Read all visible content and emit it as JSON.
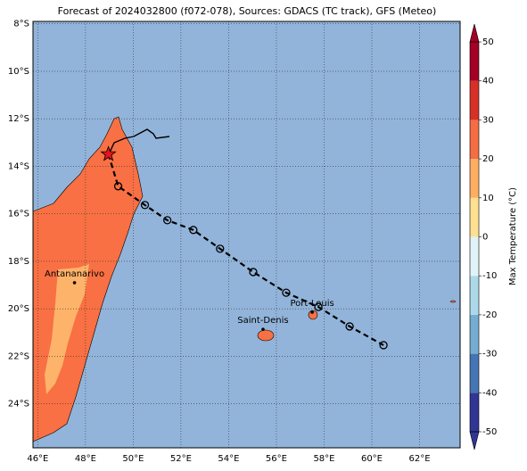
{
  "chart_data": {
    "type": "map",
    "title": "Forecast of 2024032800 (f072-078), Sources: GDACS (TC track), GFS (Meteo)",
    "xlim": [
      45.8,
      63.7
    ],
    "ylim": [
      -25.85,
      -7.9
    ],
    "xticks": [
      {
        "value": 46,
        "label": "46°E"
      },
      {
        "value": 48,
        "label": "48°E"
      },
      {
        "value": 50,
        "label": "50°E"
      },
      {
        "value": 52,
        "label": "52°E"
      },
      {
        "value": 54,
        "label": "54°E"
      },
      {
        "value": 56,
        "label": "56°E"
      },
      {
        "value": 58,
        "label": "58°E"
      },
      {
        "value": 60,
        "label": "60°E"
      },
      {
        "value": 62,
        "label": "62°E"
      }
    ],
    "yticks": [
      {
        "value": -8,
        "label": "8°S"
      },
      {
        "value": -10,
        "label": "10°S"
      },
      {
        "value": -12,
        "label": "12°S"
      },
      {
        "value": -14,
        "label": "14°S"
      },
      {
        "value": -16,
        "label": "16°S"
      },
      {
        "value": -18,
        "label": "18°S"
      },
      {
        "value": -20,
        "label": "20°S"
      },
      {
        "value": -22,
        "label": "22°S"
      },
      {
        "value": -24,
        "label": "24°S"
      }
    ],
    "grid": true,
    "ocean_color": "#92b4da",
    "track": {
      "color": "#000000",
      "lon": [
        48.96,
        49.37,
        50.49,
        51.43,
        52.52,
        53.64,
        55.03,
        56.41,
        57.76,
        59.07,
        60.49
      ],
      "lat": [
        -13.49,
        -14.84,
        -15.63,
        -16.27,
        -16.68,
        -17.47,
        -18.45,
        -19.32,
        -19.92,
        -20.74,
        -21.53
      ]
    },
    "cities": [
      {
        "name": "Antananarivo",
        "lon": 47.54,
        "lat": -18.9
      },
      {
        "name": "Saint-Denis",
        "lon": 55.44,
        "lat": -20.86
      },
      {
        "name": "Port-Louis",
        "lon": 57.5,
        "lat": -20.14
      }
    ],
    "colorbar": {
      "label": "Max Temperature (°C)",
      "lim": [
        -50,
        50
      ],
      "ticks": [
        50,
        40,
        30,
        20,
        10,
        0,
        -10,
        -20,
        -30,
        -40,
        -50
      ],
      "colors": [
        "#313695",
        "#4575b4",
        "#74add1",
        "#abd9e9",
        "#e0f3f8",
        "#fee090",
        "#fdae61",
        "#f46d43",
        "#d73027",
        "#a50026"
      ]
    }
  }
}
